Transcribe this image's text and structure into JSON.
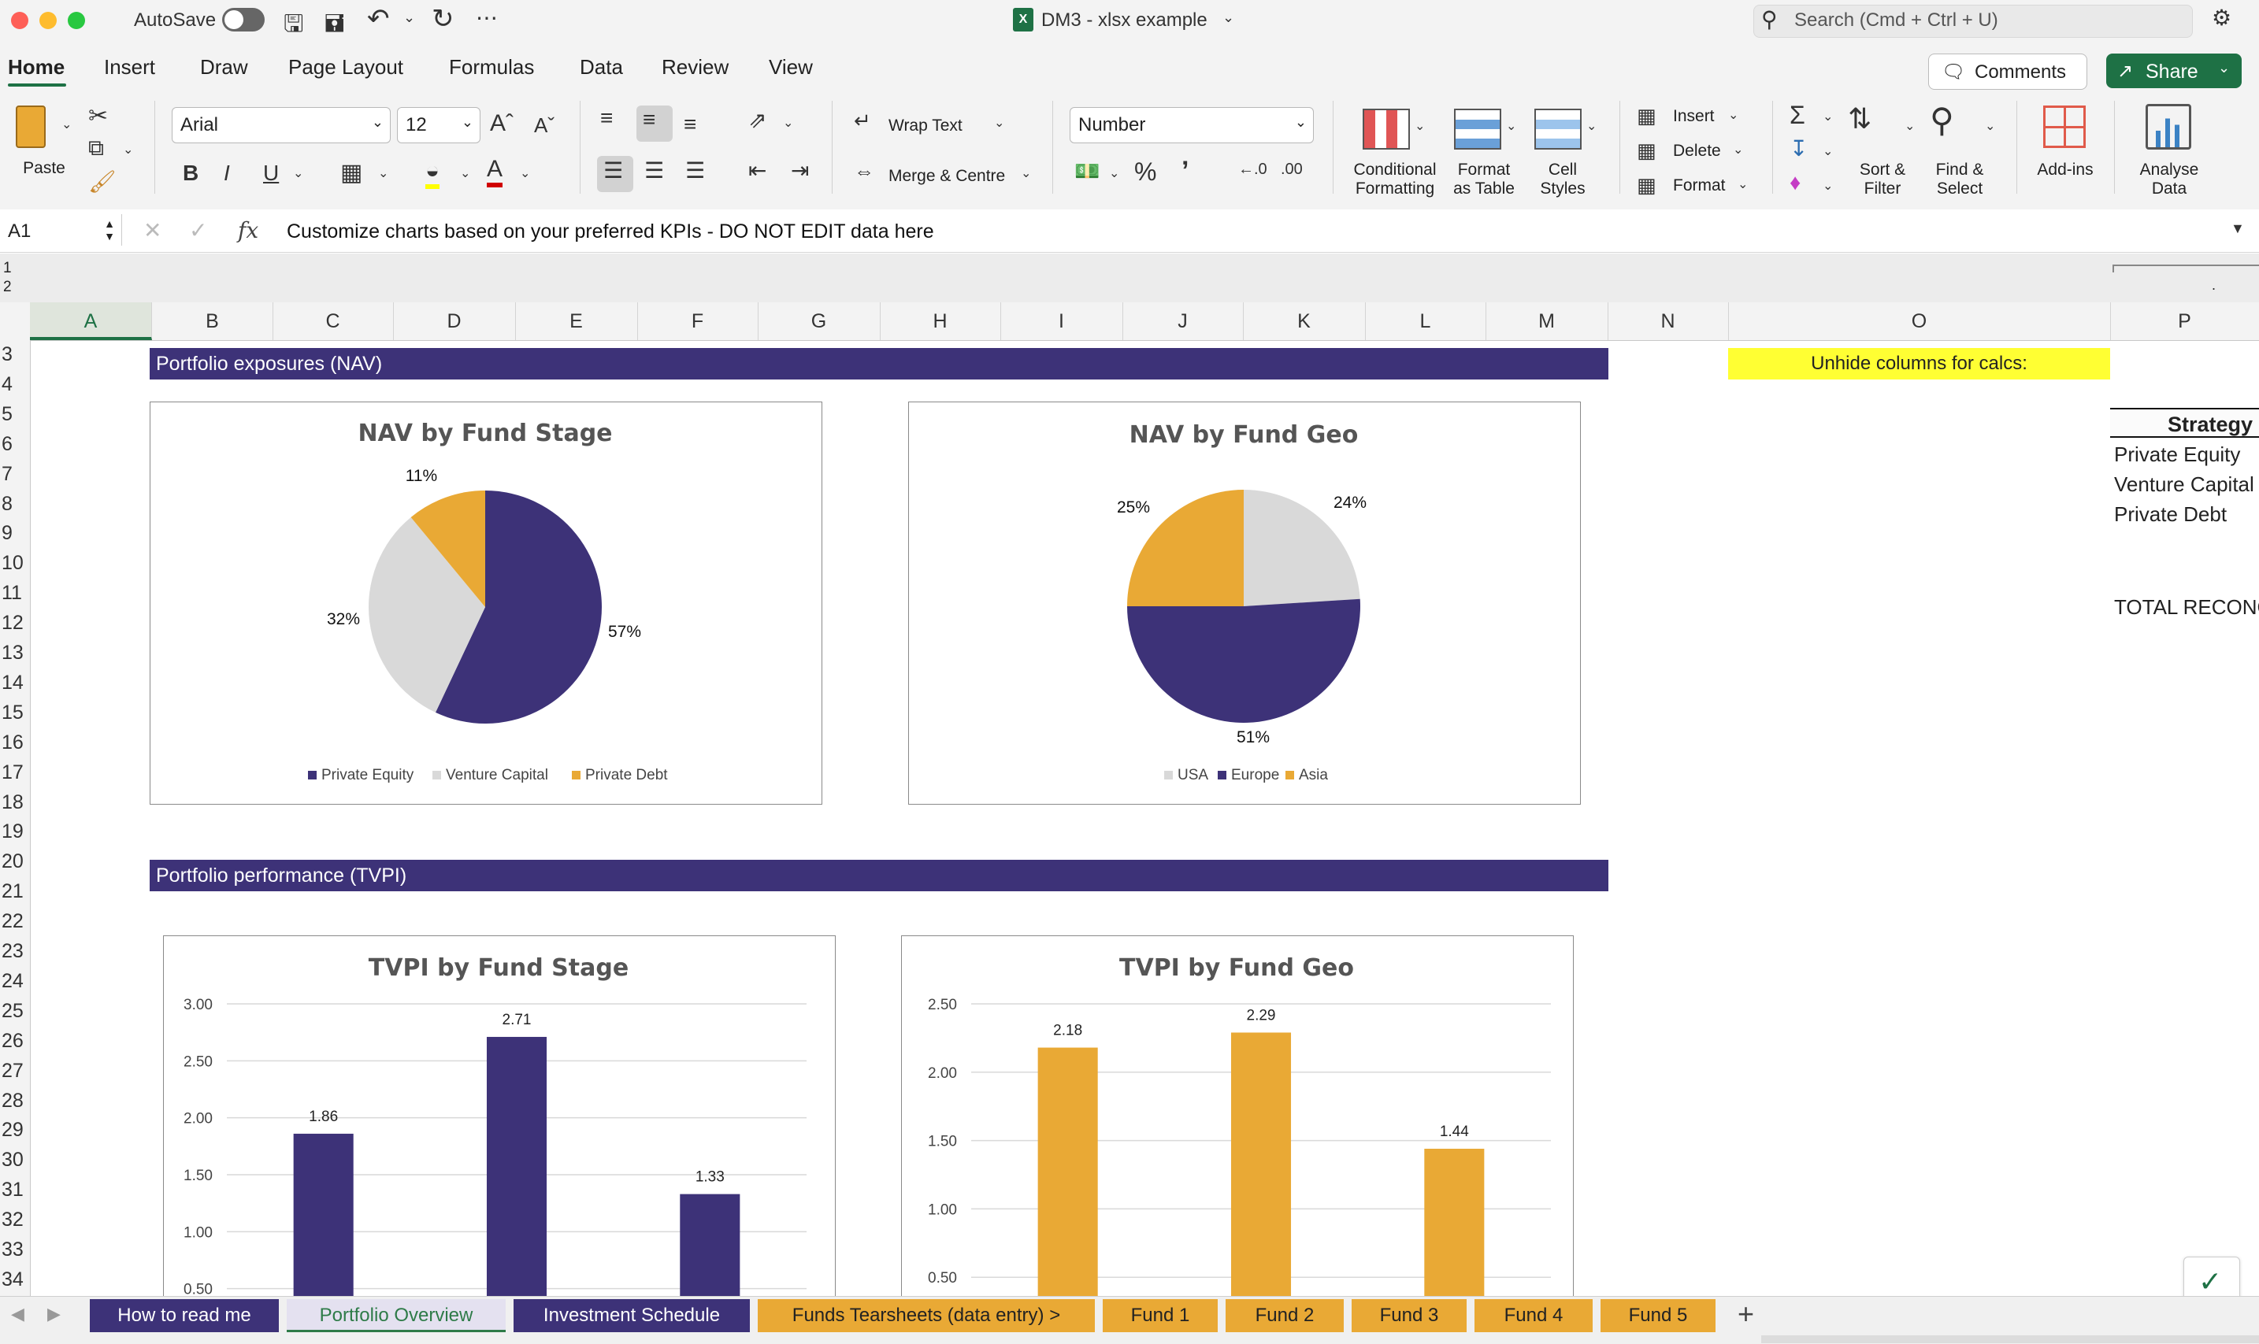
{
  "window": {
    "title": "DM3 - xlsx example",
    "autosave_label": "AutoSave",
    "search_placeholder": "Search (Cmd + Ctrl + U)"
  },
  "ribbon_tabs": [
    "Home",
    "Insert",
    "Draw",
    "Page Layout",
    "Formulas",
    "Data",
    "Review",
    "View"
  ],
  "header_buttons": {
    "comments": "Comments",
    "share": "Share"
  },
  "ribbon": {
    "paste": "Paste",
    "font_name": "Arial",
    "font_size": "12",
    "wrap_text": "Wrap Text",
    "merge_centre": "Merge & Centre",
    "number_format": "Number",
    "conditional_formatting": [
      "Conditional",
      "Formatting"
    ],
    "format_as_table": [
      "Format",
      "as Table"
    ],
    "cell_styles": [
      "Cell",
      "Styles"
    ],
    "insert": "Insert",
    "delete": "Delete",
    "format": "Format",
    "sort_filter": [
      "Sort &",
      "Filter"
    ],
    "find_select": [
      "Find &",
      "Select"
    ],
    "add_ins": "Add-ins",
    "analyse_data": [
      "Analyse",
      "Data"
    ]
  },
  "formula_bar": {
    "cell_ref": "A1",
    "fx": "fx",
    "content": "Customize charts based on your preferred KPIs - DO NOT EDIT data here"
  },
  "outline_levels": [
    "1",
    "2"
  ],
  "columns": [
    "A",
    "B",
    "C",
    "D",
    "E",
    "F",
    "G",
    "H",
    "I",
    "J",
    "K",
    "L",
    "M",
    "N",
    "O",
    "P"
  ],
  "rows": [
    "3",
    "4",
    "5",
    "6",
    "7",
    "8",
    "9",
    "10",
    "11",
    "12",
    "13",
    "14",
    "15",
    "16",
    "17",
    "18",
    "19",
    "20",
    "21",
    "22",
    "23",
    "24",
    "25",
    "26",
    "27",
    "28",
    "29",
    "30",
    "31",
    "32",
    "33",
    "34"
  ],
  "sheet": {
    "section_nav": "Portfolio exposures (NAV)",
    "section_tvpi": "Portfolio performance (TVPI)",
    "unhide_note": "Unhide columns for calcs:",
    "strategy_header": "Strategy",
    "strategy_items": [
      "Private Equity",
      "Venture Capital",
      "Private Debt"
    ],
    "total_label": "TOTAL RECONCI"
  },
  "colors": {
    "purple": "#3d3278",
    "gold": "#e9a935",
    "grey": "#d9d9d9",
    "excel_green": "#1e7145",
    "highlight_yellow": "#ffff33"
  },
  "chart_data": [
    {
      "type": "pie",
      "title": "NAV by Fund Stage",
      "categories": [
        "Private Equity",
        "Venture Capital",
        "Private Debt"
      ],
      "values": [
        57,
        32,
        11
      ],
      "labels": [
        "57%",
        "32%",
        "11%"
      ],
      "legend": "bottom"
    },
    {
      "type": "pie",
      "title": "NAV by Fund Geo",
      "categories": [
        "USA",
        "Europe",
        "Asia"
      ],
      "values": [
        24,
        51,
        25
      ],
      "labels": [
        "24%",
        "51%",
        "25%"
      ],
      "legend": "bottom"
    },
    {
      "type": "bar",
      "title": "TVPI by Fund Stage",
      "values": [
        1.86,
        2.71,
        1.33
      ],
      "labels": [
        "1.86",
        "2.71",
        "1.33"
      ],
      "ylim": [
        0,
        3.0
      ],
      "yticks": [
        "3.00",
        "2.50",
        "2.00",
        "1.50",
        "1.00",
        "0.50"
      ],
      "grid": true
    },
    {
      "type": "bar",
      "title": "TVPI by Fund Geo",
      "values": [
        2.18,
        2.29,
        1.44
      ],
      "labels": [
        "2.18",
        "2.29",
        "1.44"
      ],
      "ylim": [
        0,
        2.5
      ],
      "yticks": [
        "2.50",
        "2.00",
        "1.50",
        "1.00",
        "0.50"
      ],
      "grid": true
    }
  ],
  "sheet_tabs": [
    "How to read me",
    "Portfolio Overview",
    "Investment Schedule",
    "Funds Tearsheets (data entry) >",
    "Fund 1",
    "Fund 2",
    "Fund 3",
    "Fund 4",
    "Fund 5"
  ],
  "add_sheet": "+"
}
